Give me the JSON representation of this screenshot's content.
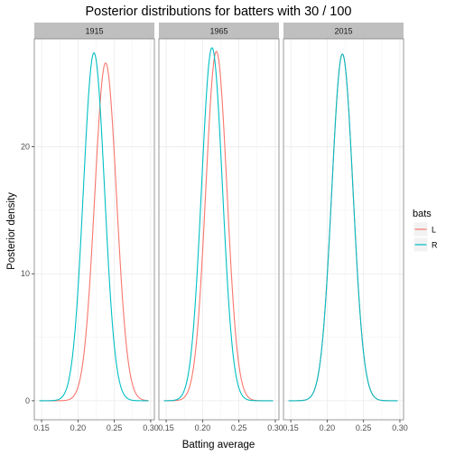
{
  "chart_data": {
    "type": "line",
    "title": "Posterior distributions for batters with 30 / 100",
    "xlabel": "Batting average",
    "ylabel": "Posterior density",
    "xlim": [
      0.14,
      0.305
    ],
    "ylim": [
      -1.5,
      28.5
    ],
    "x_ticks": [
      "0.15",
      "0.20",
      "0.25",
      "0.30"
    ],
    "x_tick_values": [
      0.15,
      0.2,
      0.25,
      0.3
    ],
    "y_ticks": [
      "0",
      "10",
      "20"
    ],
    "y_tick_values": [
      0,
      10,
      20
    ],
    "grid": true,
    "legend": {
      "title": "bats",
      "position": "right",
      "entries": [
        {
          "label": "L",
          "color": "#F8766D"
        },
        {
          "label": "R",
          "color": "#00BFC4"
        }
      ]
    },
    "facets": [
      {
        "label": "1915",
        "series": [
          {
            "name": "L",
            "color": "#F8766D",
            "mean": 0.238,
            "peak": 26.6
          },
          {
            "name": "R",
            "color": "#00BFC4",
            "mean": 0.222,
            "peak": 27.4
          }
        ]
      },
      {
        "label": "1965",
        "series": [
          {
            "name": "L",
            "color": "#F8766D",
            "mean": 0.219,
            "peak": 27.5
          },
          {
            "name": "R",
            "color": "#00BFC4",
            "mean": 0.213,
            "peak": 27.8
          }
        ]
      },
      {
        "label": "2015",
        "series": [
          {
            "name": "L",
            "color": "#F8766D",
            "mean": 0.221,
            "peak": 27.3
          },
          {
            "name": "R",
            "color": "#00BFC4",
            "mean": 0.221,
            "peak": 27.3
          }
        ]
      }
    ]
  }
}
